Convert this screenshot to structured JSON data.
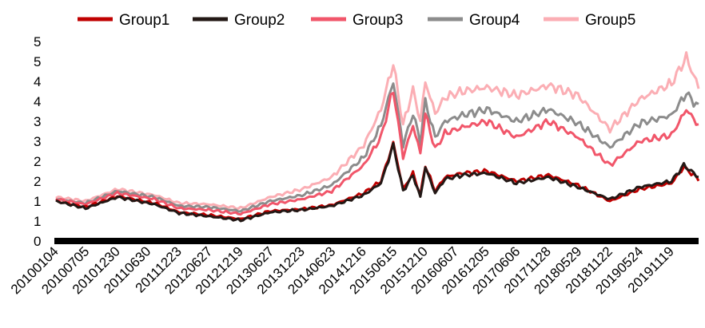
{
  "chart_data": {
    "type": "line",
    "title": "",
    "xlabel": "",
    "ylabel": "",
    "ylim": [
      0,
      5
    ],
    "y_ticks": [
      "0",
      "1",
      "1",
      "2",
      "2",
      "3",
      "3",
      "4",
      "4",
      "5",
      "5"
    ],
    "y_tick_values": [
      0,
      0.5,
      1,
      1.5,
      2,
      2.5,
      3,
      3.5,
      4,
      4.5,
      5
    ],
    "x_tick_labels": [
      "20100104",
      "20100705",
      "20101230",
      "20110630",
      "20111223",
      "20120627",
      "20121219",
      "20130627",
      "20131223",
      "20140623",
      "20141216",
      "20150615",
      "20151210",
      "20160607",
      "20161205",
      "20170606",
      "20171128",
      "20180529",
      "20181122",
      "20190524",
      "20191119"
    ],
    "x_tick_index": [
      0,
      12.5,
      25,
      37.5,
      50,
      62.5,
      75,
      87.5,
      100,
      112.5,
      125,
      137.5,
      150,
      162.5,
      175,
      187.5,
      200,
      212.5,
      225,
      237.5,
      250
    ],
    "x_count": 262,
    "grid": false,
    "legend_position": "top",
    "series": [
      {
        "name": "Group1",
        "color": "#c00000",
        "keypoints": [
          [
            0,
            1.0
          ],
          [
            12,
            0.85
          ],
          [
            25,
            1.12
          ],
          [
            40,
            0.95
          ],
          [
            50,
            0.72
          ],
          [
            62,
            0.65
          ],
          [
            75,
            0.55
          ],
          [
            87,
            0.75
          ],
          [
            100,
            0.8
          ],
          [
            112,
            0.9
          ],
          [
            125,
            1.2
          ],
          [
            132,
            1.5
          ],
          [
            137,
            2.45
          ],
          [
            141,
            1.3
          ],
          [
            145,
            1.7
          ],
          [
            148,
            1.15
          ],
          [
            150,
            1.9
          ],
          [
            154,
            1.25
          ],
          [
            158,
            1.6
          ],
          [
            165,
            1.7
          ],
          [
            175,
            1.75
          ],
          [
            187,
            1.5
          ],
          [
            200,
            1.65
          ],
          [
            212,
            1.4
          ],
          [
            225,
            1.0
          ],
          [
            237,
            1.3
          ],
          [
            250,
            1.45
          ],
          [
            255,
            1.85
          ],
          [
            261,
            1.55
          ]
        ]
      },
      {
        "name": "Group2",
        "color": "#231815",
        "keypoints": [
          [
            0,
            1.0
          ],
          [
            12,
            0.82
          ],
          [
            25,
            1.1
          ],
          [
            40,
            0.92
          ],
          [
            50,
            0.7
          ],
          [
            62,
            0.62
          ],
          [
            75,
            0.52
          ],
          [
            87,
            0.72
          ],
          [
            100,
            0.78
          ],
          [
            112,
            0.88
          ],
          [
            125,
            1.15
          ],
          [
            132,
            1.45
          ],
          [
            137,
            2.4
          ],
          [
            141,
            1.25
          ],
          [
            145,
            1.65
          ],
          [
            148,
            1.1
          ],
          [
            150,
            1.85
          ],
          [
            154,
            1.2
          ],
          [
            158,
            1.55
          ],
          [
            165,
            1.65
          ],
          [
            175,
            1.7
          ],
          [
            187,
            1.45
          ],
          [
            200,
            1.6
          ],
          [
            212,
            1.35
          ],
          [
            225,
            1.05
          ],
          [
            237,
            1.35
          ],
          [
            250,
            1.5
          ],
          [
            255,
            1.9
          ],
          [
            261,
            1.6
          ]
        ]
      },
      {
        "name": "Group3",
        "color": "#f1566a",
        "keypoints": [
          [
            0,
            1.05
          ],
          [
            12,
            0.92
          ],
          [
            25,
            1.2
          ],
          [
            40,
            1.05
          ],
          [
            50,
            0.82
          ],
          [
            62,
            0.78
          ],
          [
            75,
            0.68
          ],
          [
            87,
            0.92
          ],
          [
            100,
            1.05
          ],
          [
            112,
            1.25
          ],
          [
            125,
            1.9
          ],
          [
            132,
            2.6
          ],
          [
            137,
            3.8
          ],
          [
            141,
            2.1
          ],
          [
            145,
            2.9
          ],
          [
            148,
            2.2
          ],
          [
            150,
            3.2
          ],
          [
            154,
            2.3
          ],
          [
            158,
            2.7
          ],
          [
            165,
            2.85
          ],
          [
            175,
            3.0
          ],
          [
            187,
            2.6
          ],
          [
            200,
            3.0
          ],
          [
            212,
            2.6
          ],
          [
            225,
            1.9
          ],
          [
            237,
            2.5
          ],
          [
            250,
            2.65
          ],
          [
            256,
            3.3
          ],
          [
            261,
            2.9
          ]
        ]
      },
      {
        "name": "Group4",
        "color": "#8c8c8c",
        "keypoints": [
          [
            0,
            1.05
          ],
          [
            12,
            0.95
          ],
          [
            25,
            1.25
          ],
          [
            40,
            1.1
          ],
          [
            50,
            0.88
          ],
          [
            62,
            0.85
          ],
          [
            75,
            0.75
          ],
          [
            87,
            1.0
          ],
          [
            100,
            1.15
          ],
          [
            112,
            1.4
          ],
          [
            125,
            2.1
          ],
          [
            132,
            2.9
          ],
          [
            137,
            4.0
          ],
          [
            141,
            2.4
          ],
          [
            145,
            3.2
          ],
          [
            148,
            2.5
          ],
          [
            150,
            3.5
          ],
          [
            154,
            2.6
          ],
          [
            158,
            3.0
          ],
          [
            165,
            3.15
          ],
          [
            175,
            3.3
          ],
          [
            187,
            3.0
          ],
          [
            200,
            3.3
          ],
          [
            212,
            2.95
          ],
          [
            225,
            2.35
          ],
          [
            237,
            2.95
          ],
          [
            250,
            3.15
          ],
          [
            256,
            3.7
          ],
          [
            261,
            3.35
          ]
        ]
      },
      {
        "name": "Group5",
        "color": "#fbaeb4",
        "keypoints": [
          [
            0,
            1.1
          ],
          [
            12,
            1.0
          ],
          [
            25,
            1.3
          ],
          [
            40,
            1.15
          ],
          [
            50,
            0.95
          ],
          [
            62,
            0.92
          ],
          [
            75,
            0.82
          ],
          [
            87,
            1.1
          ],
          [
            100,
            1.3
          ],
          [
            112,
            1.6
          ],
          [
            125,
            2.4
          ],
          [
            132,
            3.3
          ],
          [
            137,
            4.45
          ],
          [
            141,
            2.9
          ],
          [
            145,
            3.8
          ],
          [
            148,
            3.0
          ],
          [
            150,
            4.0
          ],
          [
            154,
            3.2
          ],
          [
            158,
            3.6
          ],
          [
            165,
            3.75
          ],
          [
            175,
            3.85
          ],
          [
            187,
            3.65
          ],
          [
            200,
            3.9
          ],
          [
            212,
            3.65
          ],
          [
            225,
            2.8
          ],
          [
            237,
            3.55
          ],
          [
            250,
            3.95
          ],
          [
            256,
            4.6
          ],
          [
            261,
            3.85
          ]
        ]
      }
    ]
  }
}
